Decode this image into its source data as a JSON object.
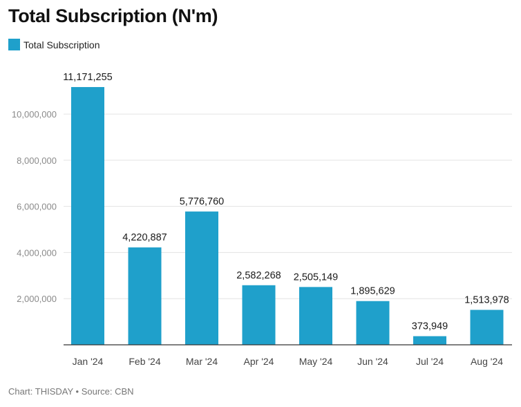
{
  "header": {
    "title": "Total Subscription (N'm)"
  },
  "legend": {
    "label": "Total Subscription",
    "color": "#1fa0cb"
  },
  "footer": {
    "credit": "Chart: THISDAY • Source: CBN"
  },
  "chart_data": {
    "type": "bar",
    "title": "Total Subscription (N'm)",
    "xlabel": "",
    "ylabel": "",
    "categories": [
      "Jan '24",
      "Feb '24",
      "Mar '24",
      "Apr '24",
      "May '24",
      "Jun '24",
      "Jul '24",
      "Aug '24"
    ],
    "series": [
      {
        "name": "Total Subscription",
        "values": [
          11171255,
          4220887,
          5776760,
          2582268,
          2505149,
          1895629,
          373949,
          1513978
        ],
        "labels": [
          "11,171,255",
          "4,220,887",
          "5,776,760",
          "2,582,268",
          "2,505,149",
          "1,895,629",
          "373,949",
          "1,513,978"
        ]
      }
    ],
    "ylim": [
      0,
      11500000
    ],
    "yticks": [
      2000000,
      4000000,
      6000000,
      8000000,
      10000000
    ],
    "ytick_labels": [
      "2,000,000",
      "4,000,000",
      "6,000,000",
      "8,000,000",
      "10,000,000"
    ],
    "grid": true,
    "bar_color": "#1fa0cb",
    "legend_position": "top-left"
  }
}
